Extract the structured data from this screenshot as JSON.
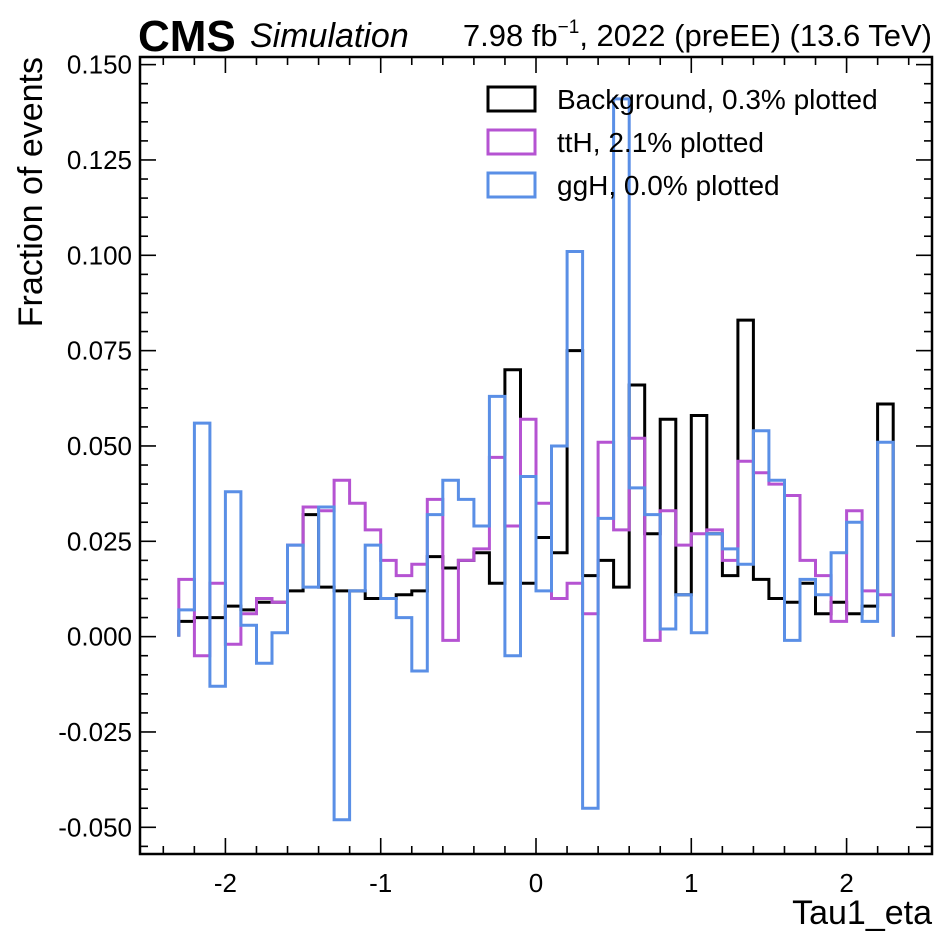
{
  "header": {
    "experiment": "CMS",
    "label": "Simulation",
    "lumi_value": "7.98 fb",
    "lumi_exp": "−1",
    "lumi_rest": ", 2022 (preEE) (13.6 TeV)"
  },
  "chart_data": {
    "type": "histogram-step",
    "xlabel": "Tau1_eta",
    "ylabel": "Fraction of events",
    "xlim": [
      -2.55,
      2.55
    ],
    "ylim": [
      -0.057,
      0.152
    ],
    "x_ticks": [
      -2,
      -1,
      0,
      1,
      2
    ],
    "x_tick_labels": [
      "-2",
      "-1",
      "0",
      "1",
      "2"
    ],
    "y_ticks": [
      -0.05,
      -0.025,
      0,
      0.025,
      0.05,
      0.075,
      0.1,
      0.125,
      0.15
    ],
    "y_tick_labels": [
      "-0.050",
      "-0.025",
      "0.000",
      "0.025",
      "0.050",
      "0.075",
      "0.100",
      "0.125",
      "0.150"
    ],
    "legend_position": "top-right",
    "bins": {
      "min": -2.3,
      "max": 2.3,
      "count": 46
    },
    "series": [
      {
        "name": "Background, 0.3% plotted",
        "color": "#000000",
        "values": [
          0.004,
          0.005,
          0.005,
          0.008,
          0.007,
          0.009,
          0.009,
          0.012,
          0.032,
          0.013,
          0.012,
          0.012,
          0.01,
          0.01,
          0.011,
          0.012,
          0.021,
          0.018,
          0.02,
          0.022,
          0.014,
          0.07,
          0.014,
          0.026,
          0.022,
          0.075,
          0.016,
          0.02,
          0.013,
          0.066,
          0.027,
          0.057,
          0.011,
          0.058,
          0.027,
          0.016,
          0.083,
          0.015,
          0.01,
          0.009,
          0.014,
          0.006,
          0.009,
          0.006,
          0.008,
          0.061
        ]
      },
      {
        "name": "ttH, 2.1% plotted",
        "color": "#b553d2",
        "values": [
          0.015,
          -0.005,
          0.014,
          -0.002,
          0.006,
          0.01,
          0.009,
          0.024,
          0.034,
          0.033,
          0.041,
          0.035,
          0.028,
          0.02,
          0.016,
          0.019,
          0.036,
          -0.001,
          0.02,
          0.023,
          0.047,
          0.029,
          0.057,
          0.035,
          0.01,
          0.014,
          0.006,
          0.051,
          0.028,
          0.052,
          -0.001,
          0.033,
          0.024,
          0.027,
          0.028,
          0.02,
          0.046,
          0.043,
          0.04,
          0.037,
          0.02,
          0.016,
          0.004,
          0.033,
          0.012,
          0.011
        ]
      },
      {
        "name": "ggH, 0.0% plotted",
        "color": "#5a8fe6",
        "values": [
          0.007,
          0.056,
          -0.013,
          0.038,
          0.003,
          -0.007,
          0.001,
          0.024,
          0.013,
          0.034,
          -0.048,
          0.012,
          0.024,
          0.01,
          0.005,
          -0.009,
          0.032,
          0.041,
          0.036,
          0.029,
          0.063,
          -0.005,
          0.042,
          0.012,
          0.05,
          0.101,
          -0.045,
          0.031,
          0.141,
          0.039,
          0.032,
          0.002,
          0.011,
          0.001,
          0.027,
          0.023,
          0.019,
          0.054,
          0.041,
          -0.001,
          0.015,
          0.011,
          0.022,
          0.03,
          0.004,
          0.051
        ]
      }
    ]
  }
}
